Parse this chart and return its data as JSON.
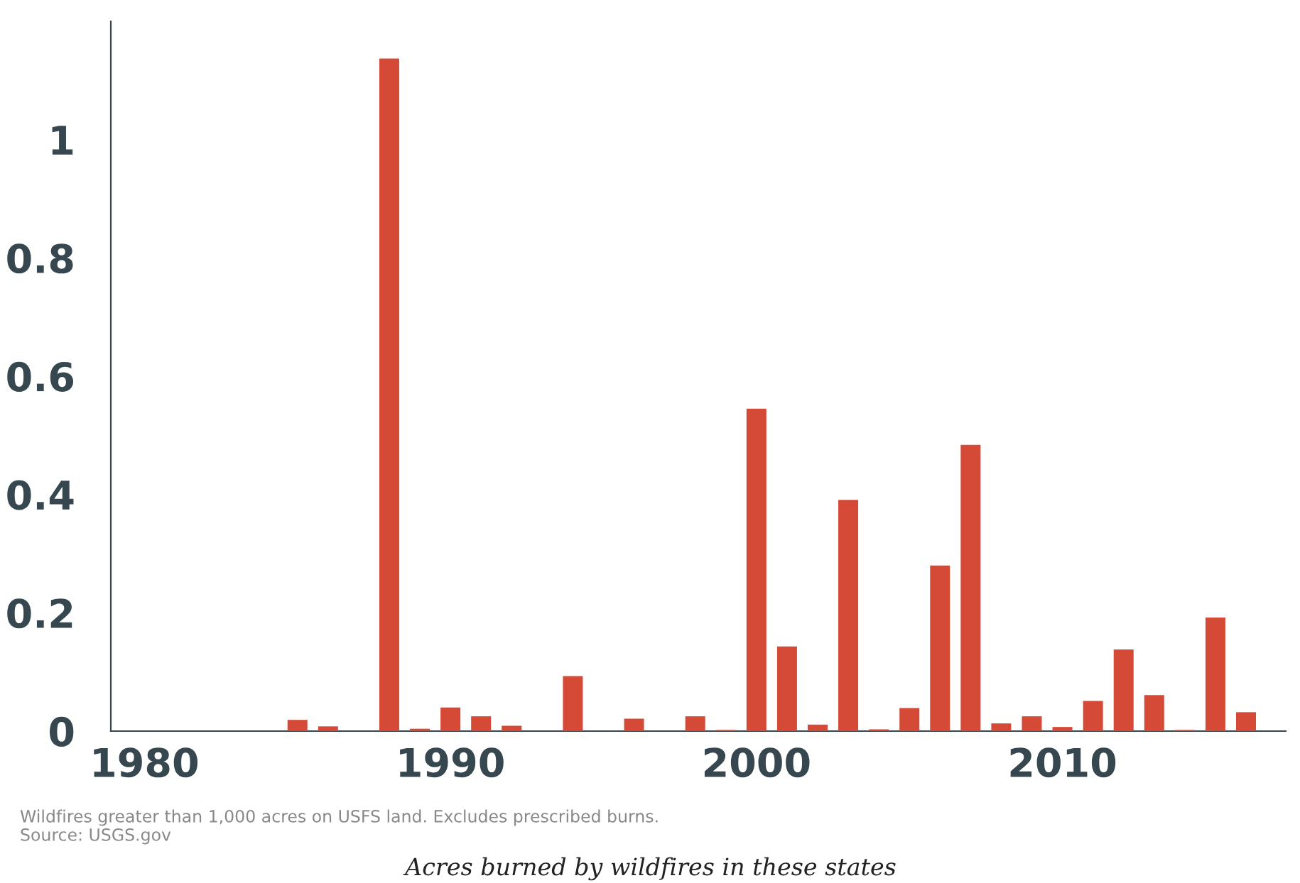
{
  "chart_data": {
    "type": "bar",
    "x": [
      1985,
      1986,
      1988,
      1989,
      1990,
      1991,
      1992,
      1994,
      1996,
      1998,
      1999,
      2000,
      2001,
      2002,
      2003,
      2004,
      2005,
      2006,
      2007,
      2008,
      2009,
      2010,
      2011,
      2012,
      2013,
      2014,
      2015,
      2016
    ],
    "values": [
      0.019,
      0.008,
      1.137,
      0.004,
      0.04,
      0.025,
      0.009,
      0.093,
      0.021,
      0.025,
      0.002,
      0.545,
      0.143,
      0.011,
      0.391,
      0.003,
      0.039,
      0.28,
      0.484,
      0.013,
      0.025,
      0.007,
      0.051,
      0.138,
      0.061,
      0.002,
      0.192,
      0.032
    ],
    "color": "#d44a36",
    "xlim": [
      1978.9,
      2017.3
    ],
    "xticks": [
      1980,
      1990,
      2000,
      2010
    ],
    "ylim": [
      0,
      1.2
    ],
    "yticks": [
      0,
      0.2,
      0.4,
      0.6,
      0.8,
      1
    ],
    "grid": false,
    "legend": false,
    "annotations": [
      "Wildfires greater than 1,000 acres on USFS land. Excludes prescribed burns.",
      "Source: USGS.gov",
      "Acres burned by wildfires in these states"
    ]
  }
}
